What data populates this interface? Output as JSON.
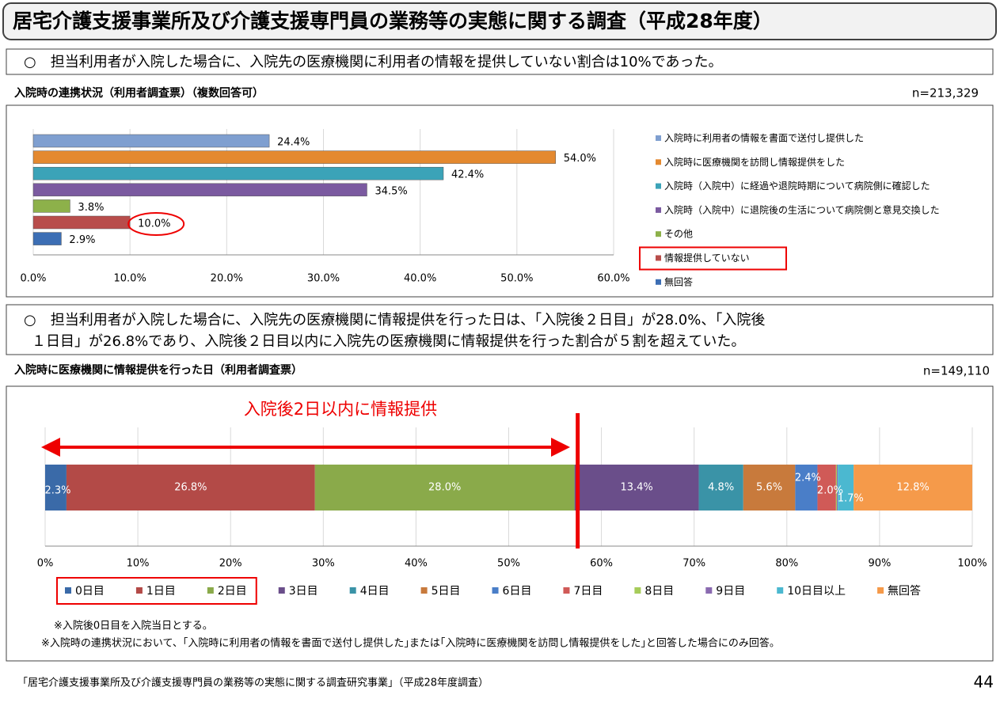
{
  "title": "居宅介護支援事業所及び介護支援専門員の業務等の実態に関する調査（平成28年度）",
  "notes": [
    [
      "○　担当利用者が入院した場合に、入院先の医療機関に利用者の情報を提供していない割合は10%であった。"
    ],
    [
      "○　担当利用者が入院した場合に、入院先の医療機関に情報提供を行った日は、「入院後２日目」が28.0%、「入院後",
      "１日目」が26.8%であり、入院後２日目以内に入院先の医療機関に情報提供を行った割合が５割を超えていた。"
    ]
  ],
  "chart_data": [
    {
      "type": "bar",
      "orientation": "horizontal",
      "title": "入院時の連携状況（利用者調査票）（複数回答可）",
      "sample_size": "n=213,329",
      "categories": [
        "入院時に利用者の情報を書面で送付し提供した",
        "入院時に医療機関を訪問し情報提供をした",
        "入院時（入院中）に経過や退院時期について病院側に確認した",
        "入院時（入院中）に退院後の生活について病院側と意見交換した",
        "その他",
        "情報提供していない",
        "無回答"
      ],
      "values": [
        24.4,
        54.0,
        42.4,
        34.5,
        3.8,
        10.0,
        2.9
      ],
      "value_labels": [
        "24.4%",
        "54.0%",
        "42.4%",
        "34.5%",
        "3.8%",
        "10.0%",
        "2.9%"
      ],
      "colors": [
        "#7f9fd0",
        "#e4892f",
        "#3ba3b8",
        "#7b5aa0",
        "#8db14a",
        "#b84d4b",
        "#3c6eb4"
      ],
      "xlim": [
        0,
        60
      ],
      "xticks": [
        {
          "value": 0,
          "label": "0.0%"
        },
        {
          "value": 10,
          "label": "10.0%"
        },
        {
          "value": 20,
          "label": "20.0%"
        },
        {
          "value": 30,
          "label": "30.0%"
        },
        {
          "value": 40,
          "label": "40.0%"
        },
        {
          "value": 50,
          "label": "50.0%"
        },
        {
          "value": 60,
          "label": "60.0%"
        }
      ],
      "grid": true,
      "highlight_index": 5
    },
    {
      "type": "stacked_bar",
      "orientation": "horizontal",
      "title": "入院時に医療機関に情報提供を行った日（利用者調査票）",
      "sample_size": "n=149,110",
      "annotation": "入院後2日以内に情報提供",
      "series": [
        {
          "name": "0日目",
          "color": "#3a6aa8",
          "values": [
            2.3
          ],
          "value_labels": [
            "2.3%"
          ]
        },
        {
          "name": "1日目",
          "color": "#b34a47",
          "values": [
            26.8
          ],
          "value_labels": [
            "26.8%"
          ]
        },
        {
          "name": "2日目",
          "color": "#8aaa4a",
          "values": [
            28.0
          ],
          "value_labels": [
            "28.0%"
          ]
        },
        {
          "name": "3日目",
          "color": "#6a4e8a",
          "values": [
            13.4
          ],
          "value_labels": [
            "13.4%"
          ]
        },
        {
          "name": "4日目",
          "color": "#3a93a7",
          "values": [
            4.8
          ],
          "value_labels": [
            "4.8%"
          ]
        },
        {
          "name": "5日目",
          "color": "#c87a3c",
          "values": [
            5.6
          ],
          "value_labels": [
            "5.6%"
          ]
        },
        {
          "name": "6日目",
          "color": "#4a7ec8",
          "values": [
            2.4
          ],
          "value_labels": [
            "2.4%"
          ]
        },
        {
          "name": "7日目",
          "color": "#d05a57",
          "values": [
            2.0
          ],
          "value_labels": [
            "2.0%"
          ]
        },
        {
          "name": "8日目",
          "color": "#a6cc5a",
          "values": [
            0.1
          ]
        },
        {
          "name": "9日目",
          "color": "#8a6ab0",
          "values": [
            0.1
          ]
        },
        {
          "name": "10日目以上",
          "color": "#4bb8d0",
          "values": [
            1.7
          ],
          "value_labels": [
            "1.7%"
          ]
        },
        {
          "name": "無回答",
          "color": "#f59a4a",
          "values": [
            12.8
          ],
          "value_labels": [
            "12.8%"
          ]
        }
      ],
      "xlim": [
        0,
        100
      ],
      "xticks": [
        {
          "value": 0,
          "label": "0%"
        },
        {
          "value": 10,
          "label": "10%"
        },
        {
          "value": 20,
          "label": "20%"
        },
        {
          "value": 30,
          "label": "30%"
        },
        {
          "value": 40,
          "label": "40%"
        },
        {
          "value": 50,
          "label": "50%"
        },
        {
          "value": 60,
          "label": "60%"
        },
        {
          "value": 70,
          "label": "70%"
        },
        {
          "value": 80,
          "label": "80%"
        },
        {
          "value": 90,
          "label": "90%"
        },
        {
          "value": 100,
          "label": "100%"
        }
      ],
      "grid": true,
      "highlight_series": [
        0,
        1,
        2
      ]
    }
  ],
  "footnotes": [
    "※入院後0日目を入院当日とする。",
    "※入院時の連携状況において、｢入院時に利用者の情報を書面で送付し提供した｣または｢入院時に医療機関を訪問し情報提供をした｣と回答した場合にのみ回答。"
  ],
  "source": "「居宅介護支援事業所及び介護支援専門員の業務等の実態に関する調査研究事業」（平成28年度調査）",
  "page_number": "44"
}
